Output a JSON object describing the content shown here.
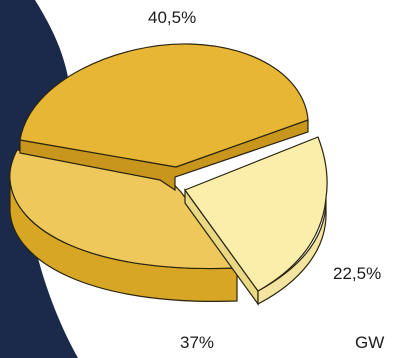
{
  "chart_data": {
    "type": "pie",
    "categories": [
      "",
      "",
      ""
    ],
    "values": [
      40.5,
      22.5,
      37
    ],
    "labels": [
      "40,5%",
      "22,5%",
      "37%"
    ],
    "exploded_slice": 1,
    "colors": {
      "slice_40_5": "#e7b634",
      "slice_22_5": "#fbeeab",
      "slice_37": "#eec85a",
      "background_shape": "#1b2a4a",
      "outline": "#2a2410"
    }
  },
  "footer": {
    "partial_text": "GW"
  }
}
